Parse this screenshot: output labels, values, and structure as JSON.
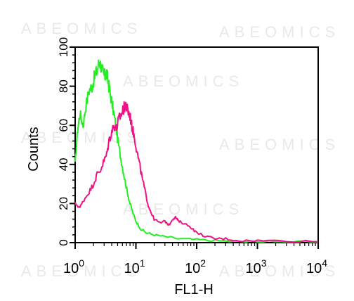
{
  "watermark": "ABEOMICS",
  "chart_data": {
    "type": "line",
    "title": "",
    "xlabel": "FL1-H",
    "ylabel": "Counts",
    "x_scale": "log",
    "xlim": [
      1,
      10000
    ],
    "ylim": [
      0,
      100
    ],
    "grid": false,
    "x_ticks": [
      {
        "base": "10",
        "exp": "0",
        "value": 1
      },
      {
        "base": "10",
        "exp": "1",
        "value": 10
      },
      {
        "base": "10",
        "exp": "2",
        "value": 100
      },
      {
        "base": "10",
        "exp": "3",
        "value": 1000
      },
      {
        "base": "10",
        "exp": "4",
        "value": 10000
      }
    ],
    "y_ticks": [
      "0",
      "20",
      "40",
      "60",
      "80",
      "100"
    ],
    "series": [
      {
        "color": "#22ee22",
        "x": [
          1.0,
          1.1,
          1.2,
          1.35,
          1.5,
          1.7,
          1.9,
          2.1,
          2.3,
          2.5,
          2.7,
          2.9,
          3.1,
          3.3,
          3.5,
          3.7,
          4.0,
          4.4,
          4.8,
          5.3,
          5.9,
          6.5,
          7.2,
          8.0,
          9.0,
          10.0,
          12.0,
          15.0,
          20.0,
          30.0,
          50.0,
          100.0,
          200.0,
          500.0,
          1000.0,
          3000.0,
          10000.0
        ],
        "y": [
          40,
          58,
          66,
          60,
          70,
          78,
          80,
          85,
          88,
          93,
          90,
          86,
          85,
          87,
          82,
          78,
          72,
          65,
          57,
          48,
          40,
          33,
          26,
          20,
          15,
          11,
          7,
          5,
          4,
          3,
          2,
          1.5,
          1,
          0.5,
          0.5,
          0.3,
          0.3
        ]
      },
      {
        "color": "#ee1188",
        "x": [
          1.0,
          1.2,
          1.4,
          1.7,
          2.0,
          2.3,
          2.6,
          3.0,
          3.3,
          3.6,
          4.0,
          4.4,
          4.8,
          5.2,
          5.6,
          6.0,
          6.4,
          6.8,
          7.2,
          7.6,
          8.0,
          8.5,
          9.0,
          9.7,
          10.5,
          11.5,
          12.5,
          14.0,
          16.0,
          18.0,
          20.0,
          25.0,
          30.0,
          35.0,
          40.0,
          45.0,
          50.0,
          60.0,
          80.0,
          100.0,
          150.0,
          200.0,
          300.0,
          500.0,
          1000.0,
          3000.0,
          10000.0
        ],
        "y": [
          20,
          18,
          22,
          26,
          30,
          35,
          37,
          42,
          45,
          52,
          57,
          60,
          58,
          63,
          65,
          67,
          69,
          71,
          68,
          66,
          65,
          60,
          57,
          52,
          46,
          40,
          34,
          27,
          19,
          15,
          12,
          10,
          11,
          9,
          12,
          13,
          11,
          10,
          8,
          5,
          3,
          2,
          2,
          1,
          1,
          1,
          0.5
        ]
      }
    ]
  }
}
